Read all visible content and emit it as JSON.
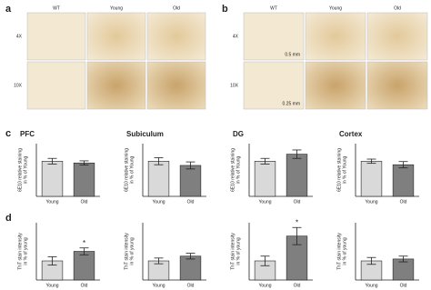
{
  "panel_labels": [
    "a",
    "b",
    "c",
    "d"
  ],
  "images": {
    "a": {
      "columns": [
        "WT",
        "Young",
        "Old"
      ],
      "rows": [
        "4X",
        "10X"
      ]
    },
    "b": {
      "columns": [
        "WT",
        "Young",
        "Old"
      ],
      "rows": [
        "4X",
        "10X"
      ],
      "scale_bars": [
        "0.5 mm",
        "0.25 mm"
      ]
    }
  },
  "chart_data": [
    {
      "type": "bar",
      "title": "PFC",
      "ylabel": [
        "6E10 relative staining",
        "in % of Young"
      ],
      "categories": [
        "Young",
        "Old"
      ],
      "values": [
        100,
        95
      ],
      "errors": [
        8,
        6
      ],
      "colors": [
        "#d9d9d9",
        "#7f7f7f"
      ],
      "ylim": [
        0,
        150
      ]
    },
    {
      "type": "bar",
      "title": "Subiculum",
      "ylabel": [
        "6E10 relative staining",
        "in % of Young"
      ],
      "categories": [
        "Young",
        "Old"
      ],
      "values": [
        100,
        88
      ],
      "errors": [
        10,
        10
      ],
      "colors": [
        "#d9d9d9",
        "#7f7f7f"
      ],
      "ylim": [
        0,
        150
      ]
    },
    {
      "type": "bar",
      "title": "DG",
      "ylabel": [
        "6E10 relative staining",
        "in % of Young"
      ],
      "categories": [
        "Young",
        "Old"
      ],
      "values": [
        100,
        120
      ],
      "errors": [
        8,
        12
      ],
      "colors": [
        "#d9d9d9",
        "#7f7f7f"
      ],
      "ylim": [
        0,
        150
      ]
    },
    {
      "type": "bar",
      "title": "Cortex",
      "ylabel": [
        "6E10 relative staining",
        "in % of Young"
      ],
      "categories": [
        "Young",
        "Old"
      ],
      "values": [
        100,
        90
      ],
      "errors": [
        6,
        9
      ],
      "colors": [
        "#d9d9d9",
        "#7f7f7f"
      ],
      "ylim": [
        0,
        150
      ]
    },
    {
      "type": "bar",
      "ylabel": [
        "ThT stain intensity",
        "in % of young"
      ],
      "categories": [
        "Young",
        "Old"
      ],
      "values": [
        100,
        150
      ],
      "errors": [
        22,
        18
      ],
      "colors": [
        "#d9d9d9",
        "#7f7f7f"
      ],
      "ylim": [
        0,
        300
      ],
      "annotation": {
        "text": "*",
        "category": "Old"
      }
    },
    {
      "type": "bar",
      "ylabel": [
        "ThT stain intensity",
        "in % of young"
      ],
      "categories": [
        "Young",
        "Old"
      ],
      "values": [
        100,
        125
      ],
      "errors": [
        15,
        15
      ],
      "colors": [
        "#d9d9d9",
        "#7f7f7f"
      ],
      "ylim": [
        0,
        300
      ]
    },
    {
      "type": "bar",
      "ylabel": [
        "ThT stain intensity",
        "in % of young"
      ],
      "categories": [
        "Young",
        "Old"
      ],
      "values": [
        100,
        230
      ],
      "errors": [
        25,
        45
      ],
      "colors": [
        "#d9d9d9",
        "#7f7f7f"
      ],
      "ylim": [
        0,
        300
      ],
      "annotation": {
        "text": "*",
        "category": "Old"
      }
    },
    {
      "type": "bar",
      "ylabel": [
        "ThT stain intensity",
        "in % of young"
      ],
      "categories": [
        "Young",
        "Old"
      ],
      "values": [
        100,
        110
      ],
      "errors": [
        18,
        15
      ],
      "colors": [
        "#d9d9d9",
        "#7f7f7f"
      ],
      "ylim": [
        0,
        300
      ]
    }
  ]
}
